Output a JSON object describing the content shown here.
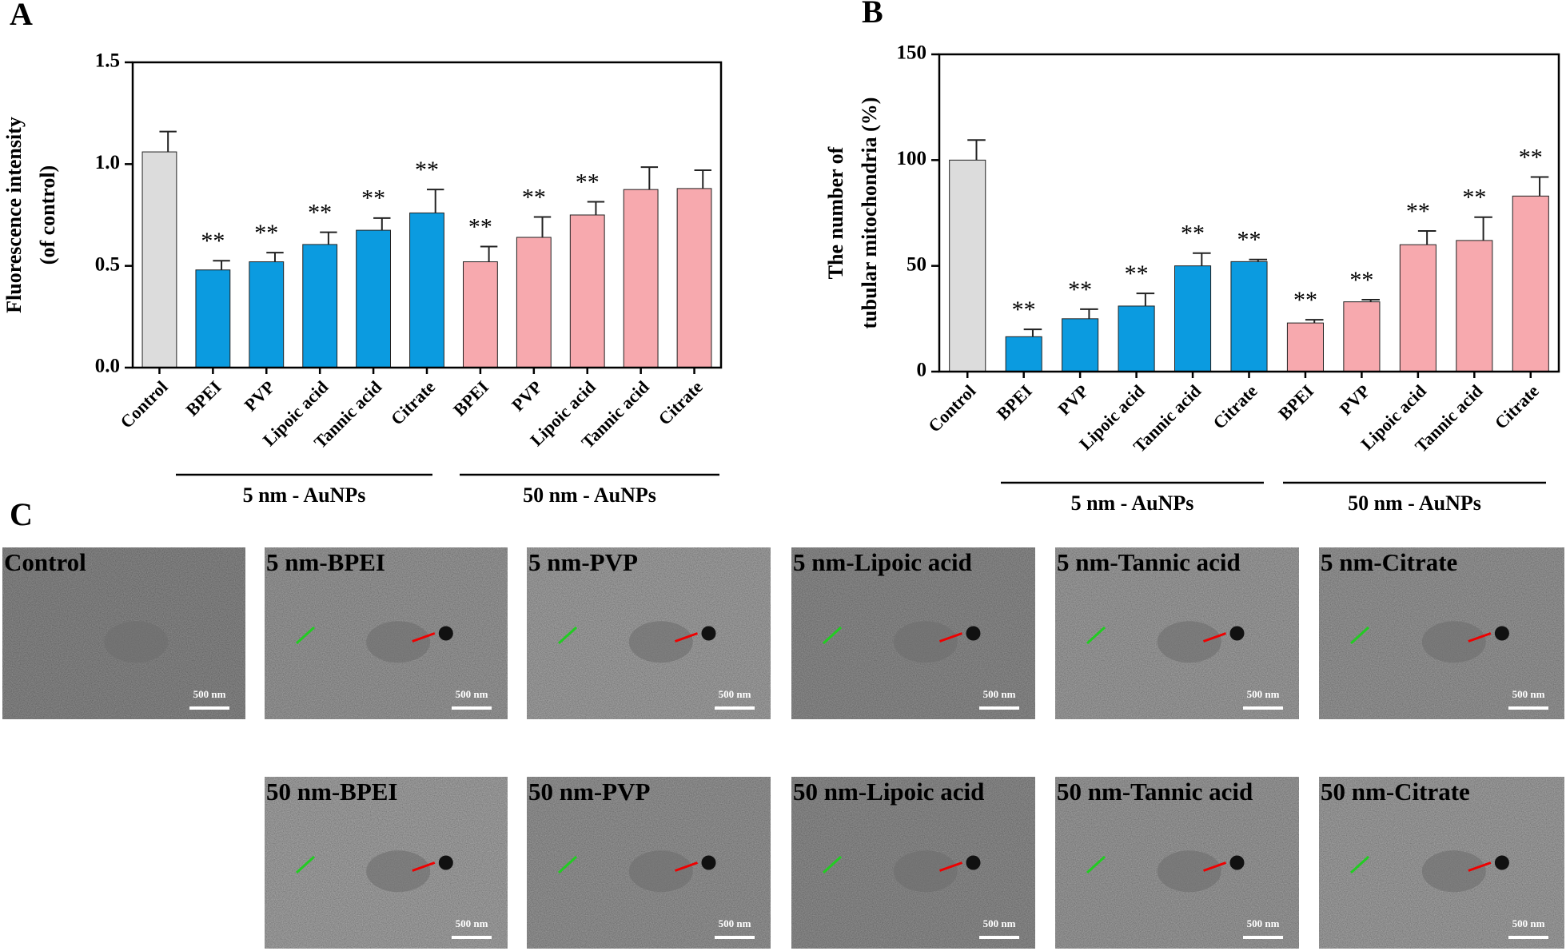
{
  "chart_data": [
    {
      "type": "bar",
      "panel_label": "A",
      "y_label": [
        "Fluorescence intensity",
        "(of control)"
      ],
      "categories": [
        "Control",
        "BPEI",
        "PVP",
        "Lipoic acid",
        "Tannic acid",
        "Citrate",
        "BPEI",
        "PVP",
        "Lipoic acid",
        "Tannic acid",
        "Citrate"
      ],
      "values": [
        1.06,
        0.48,
        0.52,
        0.605,
        0.675,
        0.76,
        0.52,
        0.64,
        0.75,
        0.875,
        0.88
      ],
      "errors": [
        0.1,
        0.045,
        0.045,
        0.06,
        0.06,
        0.115,
        0.075,
        0.1,
        0.065,
        0.11,
        0.09
      ],
      "annotations": [
        null,
        "**",
        "**",
        "**",
        "**",
        "**",
        "**",
        "**",
        "**",
        null,
        null
      ],
      "colors": [
        "#dcdcdc",
        "#0b9be0",
        "#0b9be0",
        "#0b9be0",
        "#0b9be0",
        "#0b9be0",
        "#f7a9ae",
        "#f7a9ae",
        "#f7a9ae",
        "#f7a9ae",
        "#f7a9ae"
      ],
      "groups": [
        {
          "label": "5 nm - AuNPs"
        },
        {
          "label": "50 nm - AuNPs"
        }
      ],
      "ylim": [
        0,
        1.5
      ],
      "yticks": [
        {
          "value": 0,
          "label": "0.0"
        },
        {
          "value": 0.5,
          "label": "0.5"
        },
        {
          "value": 1,
          "label": "1.0"
        },
        {
          "value": 1.5,
          "label": "1.5"
        }
      ]
    },
    {
      "type": "bar",
      "panel_label": "B",
      "y_label": [
        "The number of",
        "tubular mitochondria (%)"
      ],
      "categories": [
        "Control",
        "BPEI",
        "PVP",
        "Lipoic acid",
        "Tannic acid",
        "Citrate",
        "BPEI",
        "PVP",
        "Lipoic acid",
        "Tannic acid",
        "Citrate"
      ],
      "values": [
        100,
        16.5,
        25,
        31,
        50,
        52,
        23,
        33,
        60,
        62,
        83
      ],
      "errors": [
        9.5,
        3.5,
        4.5,
        6,
        6,
        1,
        1.5,
        1,
        6.5,
        11,
        9
      ],
      "annotations": [
        null,
        "**",
        "**",
        "**",
        "**",
        "**",
        "**",
        "**",
        "**",
        "**",
        "**"
      ],
      "colors": [
        "#dcdcdc",
        "#0b9be0",
        "#0b9be0",
        "#0b9be0",
        "#0b9be0",
        "#0b9be0",
        "#f7a9ae",
        "#f7a9ae",
        "#f7a9ae",
        "#f7a9ae",
        "#f7a9ae"
      ],
      "groups": [
        {
          "label": "5 nm - AuNPs"
        },
        {
          "label": "50 nm - AuNPs"
        }
      ],
      "ylim": [
        0,
        150
      ],
      "yticks": [
        0,
        50,
        100,
        150
      ]
    }
  ],
  "panel_c": {
    "panel_label": "C",
    "micrographs": [
      {
        "label": "Control",
        "scale_bar": "500 nm"
      },
      {
        "label": "5 nm-BPEI",
        "scale_bar": "500 nm"
      },
      {
        "label": "5 nm-PVP",
        "scale_bar": "500 nm"
      },
      {
        "label": "5 nm-Lipoic acid",
        "scale_bar": "500 nm"
      },
      {
        "label": "5 nm-Tannic acid",
        "scale_bar": "500 nm"
      },
      {
        "label": "5 nm-Citrate",
        "scale_bar": "500 nm"
      },
      {
        "label": "50 nm-BPEI",
        "scale_bar": "500 nm"
      },
      {
        "label": "50 nm-PVP",
        "scale_bar": "500 nm"
      },
      {
        "label": "50 nm-Lipoic acid",
        "scale_bar": "500 nm"
      },
      {
        "label": "50 nm-Tannic acid",
        "scale_bar": "500 nm"
      },
      {
        "label": "50 nm-Citrate",
        "scale_bar": "500 nm"
      }
    ]
  }
}
